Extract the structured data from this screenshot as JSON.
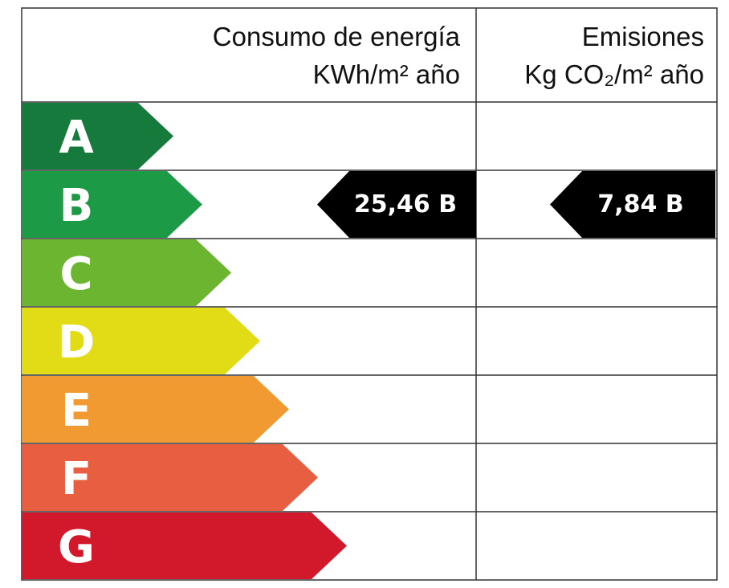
{
  "header": {
    "energy_title": "Consumo de energía",
    "energy_unit": "KWh/m² año",
    "emissions_title": "Emisiones",
    "emissions_unit": "Kg CO₂/m² año"
  },
  "rows": [
    {
      "letter": "A",
      "color": "#157a3c"
    },
    {
      "letter": "B",
      "color": "#1d9a46",
      "energy": "25,46 B",
      "emissions": "7,84 B"
    },
    {
      "letter": "C",
      "color": "#6cb531"
    },
    {
      "letter": "D",
      "color": "#e2dc16"
    },
    {
      "letter": "E",
      "color": "#f29a32"
    },
    {
      "letter": "F",
      "color": "#e85e41"
    },
    {
      "letter": "G",
      "color": "#d2192b"
    }
  ]
}
